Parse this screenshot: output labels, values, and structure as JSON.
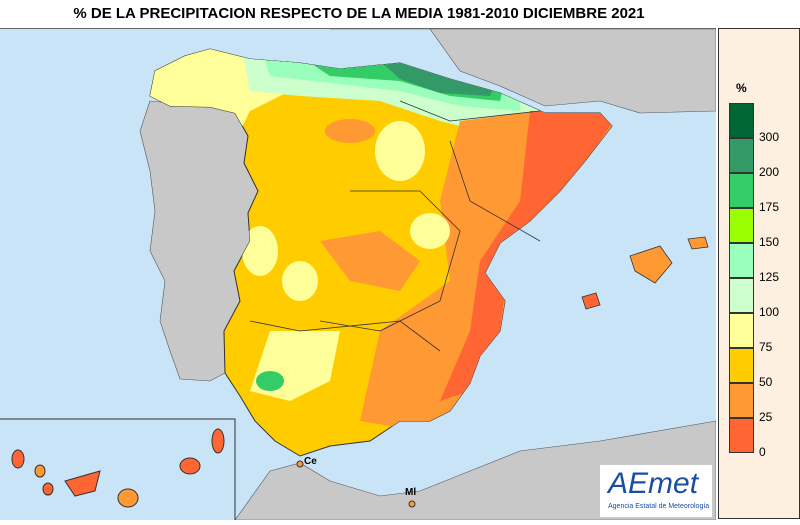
{
  "title": "% DE LA PRECIPITACION RESPECTO DE LA MEDIA 1981-2010 DICIEMBRE 2021",
  "legend": {
    "unit": "%",
    "bins": [
      {
        "label": "300",
        "color": "#006633"
      },
      {
        "label": "200",
        "color": "#339966"
      },
      {
        "label": "175",
        "color": "#33cc66"
      },
      {
        "label": "150",
        "color": "#99ff00"
      },
      {
        "label": "125",
        "color": "#99ffbb"
      },
      {
        "label": "100",
        "color": "#ccffcc"
      },
      {
        "label": "75",
        "color": "#ffff99"
      },
      {
        "label": "50",
        "color": "#ffcc00"
      },
      {
        "label": "25",
        "color": "#ff9933"
      },
      {
        "label": "0",
        "color": "#ff6633"
      }
    ]
  },
  "markers": {
    "ceuta": "Ce",
    "melilla": "Ml"
  },
  "logo": {
    "name": "AEmet",
    "subtitle": "Agencia Estatal de Meteorología"
  }
}
